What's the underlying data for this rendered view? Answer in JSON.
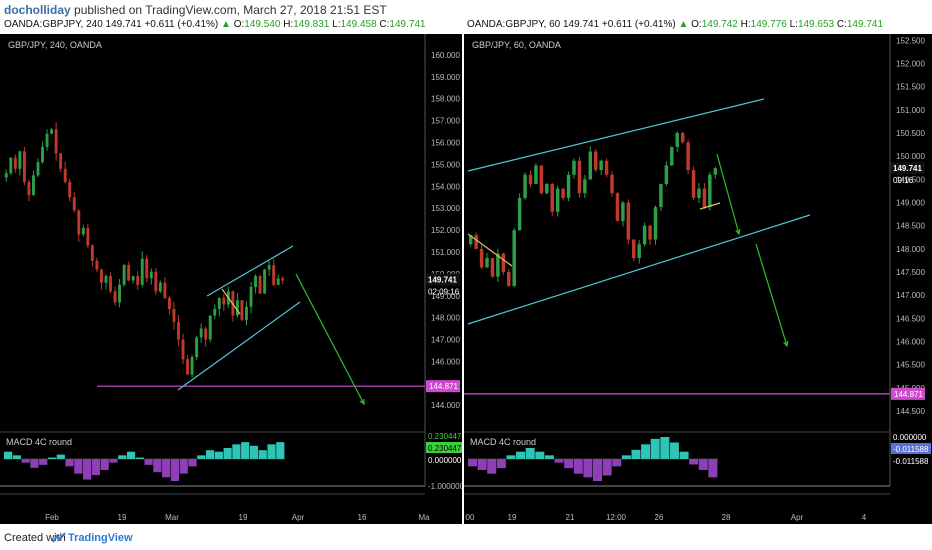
{
  "header": {
    "author": "docholliday",
    "published": "published on TradingView.com, March 27, 2018 21:51 EST"
  },
  "footer": {
    "created": "Created with",
    "brand": "TradingView"
  },
  "colors": {
    "background": "#000000",
    "channel": "#4ec9d8",
    "support": "#d04ad0",
    "projection": "#2fbf2f",
    "candle_up": "#2e9e48",
    "candle_down": "#c0392b",
    "macd_up": "#2ec4b6",
    "macd_down": "#8e3fb8"
  },
  "charts": [
    {
      "quote": {
        "symbol": "OANDA:GBPJPY, 240",
        "last": "149.741",
        "change": "+0.611 (+0.41%)",
        "open_label": "O:",
        "open": "149.540",
        "high_label": "H:",
        "high": "149.831",
        "low_label": "L:",
        "low": "149.458",
        "close_label": "C:",
        "close": "149.741"
      },
      "pane_title": "GBP/JPY, 240, OANDA",
      "last_price_label": "149.741",
      "countdown_label": "02:09:16",
      "support_label": "144.871",
      "macd_title": "MACD 4C round",
      "macd_labels": [
        "0.230447",
        "0.230447",
        "0.000000",
        "-1.000000"
      ],
      "x_labels": [
        "Feb",
        "19",
        "Mar",
        "19",
        "Apr",
        "16",
        "Ma"
      ]
    },
    {
      "quote": {
        "symbol": "OANDA:GBPJPY, 60",
        "last": "149.741",
        "change": "+0.611 (+0.41%)",
        "open_label": "O:",
        "open": "149.742",
        "high_label": "H:",
        "high": "149.776",
        "low_label": "L:",
        "low": "149.653",
        "close_label": "C:",
        "close": "149.741"
      },
      "pane_title": "GBP/JPY, 60, OANDA",
      "last_price_label": "149.741",
      "countdown_label": "09:16",
      "support_label": "144.871",
      "macd_title": "MACD 4C round",
      "macd_labels": [
        "0.000000",
        "-0.011588",
        "-0.011588"
      ],
      "x_labels": [
        "00",
        "19",
        "21",
        "12:00",
        "26",
        "28",
        "Apr",
        "4"
      ]
    }
  ],
  "chart_data": [
    {
      "type": "candlestick",
      "title": "GBP/JPY, 240, OANDA",
      "y_ticks": [
        144.0,
        145.0,
        146.0,
        147.0,
        148.0,
        149.0,
        150.0,
        151.0,
        152.0,
        153.0,
        154.0,
        155.0,
        156.0,
        157.0,
        158.0,
        159.0,
        160.0
      ],
      "ylim": [
        143.6,
        160.5
      ],
      "x_tick_labels": [
        "Feb",
        "19",
        "Mar",
        "19",
        "Apr",
        "16",
        "Ma"
      ],
      "close_path": [
        154.6,
        155.3,
        154.8,
        155.6,
        154.2,
        153.6,
        154.5,
        155.1,
        155.8,
        156.4,
        156.6,
        155.5,
        154.8,
        154.2,
        153.5,
        152.9,
        151.8,
        152.1,
        151.3,
        150.6,
        150.2,
        149.6,
        149.9,
        149.2,
        148.7,
        149.5,
        150.4,
        149.7,
        149.9,
        149.5,
        150.7,
        149.8,
        150.1,
        149.2,
        149.6,
        148.9,
        148.4,
        147.8,
        147.0,
        146.1,
        145.4,
        146.2,
        147.1,
        147.5,
        147.0,
        148.1,
        148.4,
        148.9,
        148.6,
        149.2,
        148.1,
        148.8,
        147.9,
        148.5,
        149.4,
        149.9,
        149.1,
        150.2,
        150.4,
        149.5,
        149.8,
        149.7
      ],
      "last_price": 149.741,
      "support_level": 144.871,
      "channel_upper": [
        [
          149.28,
          1
        ],
        [
          151.2,
          4
        ]
      ],
      "channel_lower": [
        [
          145.45,
          0
        ],
        [
          149.15,
          5
        ]
      ],
      "macd_histogram": [
        0.1,
        0.05,
        -0.05,
        -0.12,
        -0.08,
        0.02,
        0.06,
        -0.1,
        -0.2,
        -0.28,
        -0.22,
        -0.15,
        -0.05,
        0.05,
        0.1,
        0.02,
        -0.08,
        -0.18,
        -0.25,
        -0.3,
        -0.2,
        -0.1,
        0.05,
        0.12,
        0.1,
        0.15,
        0.2,
        0.23,
        0.18,
        0.12,
        0.2,
        0.23
      ]
    },
    {
      "type": "candlestick",
      "title": "GBP/JPY, 60, OANDA",
      "y_ticks": [
        144.5,
        145.0,
        145.5,
        146.0,
        146.5,
        147.0,
        147.5,
        148.0,
        148.5,
        149.0,
        149.5,
        150.0,
        150.5,
        151.0,
        151.5,
        152.0,
        152.5
      ],
      "ylim": [
        144.35,
        152.55
      ],
      "x_tick_labels": [
        "00",
        "19",
        "21",
        "12:00",
        "26",
        "28",
        "Apr",
        "4"
      ],
      "close_path": [
        148.3,
        148.0,
        147.6,
        147.8,
        147.4,
        147.9,
        147.5,
        147.2,
        148.4,
        149.1,
        149.6,
        149.4,
        149.8,
        149.2,
        149.4,
        148.8,
        149.3,
        149.1,
        149.6,
        149.9,
        149.2,
        149.5,
        150.1,
        149.7,
        149.9,
        149.6,
        149.2,
        148.6,
        149.0,
        148.2,
        147.8,
        148.1,
        148.5,
        148.2,
        148.9,
        149.4,
        149.8,
        150.2,
        150.5,
        150.3,
        149.7,
        149.1,
        149.3,
        148.9,
        149.6,
        149.741
      ],
      "last_price": 149.741,
      "support_level": 144.871,
      "macd_histogram": [
        -0.004,
        -0.006,
        -0.008,
        -0.005,
        0.002,
        0.004,
        0.006,
        0.004,
        0.002,
        -0.002,
        -0.005,
        -0.008,
        -0.01,
        -0.012,
        -0.009,
        -0.004,
        0.002,
        0.005,
        0.008,
        0.011,
        0.012,
        0.009,
        0.004,
        -0.003,
        -0.006,
        -0.01
      ]
    }
  ]
}
